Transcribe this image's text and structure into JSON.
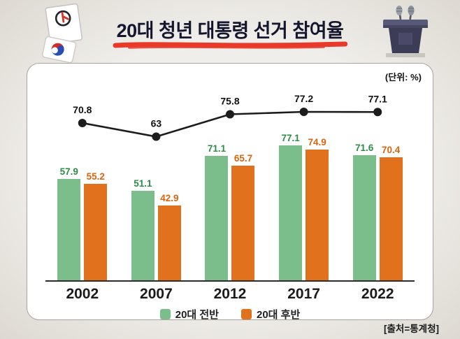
{
  "title": "20대 청년 대통령 선거 참여율",
  "unit_label": "(단위: %)",
  "source": "[출처=통계청]",
  "colors": {
    "accent_red": "#e8392a",
    "green_bar": "#7cbd8c",
    "orange_bar": "#e2711d",
    "line_black": "#1c1c1c"
  },
  "icons": {
    "left": "ballot-box-icon",
    "right": "podium-icon"
  },
  "chart_data": {
    "type": "bar",
    "subtype": "grouped-bars-with-line",
    "categories": [
      "2002",
      "2007",
      "2012",
      "2017",
      "2022"
    ],
    "series": [
      {
        "name": "20대 전반",
        "color": "#7cbd8c",
        "text_color": "#2e8b47",
        "values": [
          57.9,
          51.1,
          71.1,
          77.1,
          71.6
        ]
      },
      {
        "name": "20대 후반",
        "color": "#e2711d",
        "text_color": "#d9650f",
        "values": [
          55.2,
          42.9,
          65.7,
          74.9,
          70.4
        ]
      }
    ],
    "line": {
      "color": "#1c1c1c",
      "values": [
        70.8,
        63,
        75.8,
        77.2,
        77.1
      ]
    },
    "title": "20대 청년 대통령 선거 참여율",
    "xlabel": "",
    "ylabel": "",
    "unit": "%",
    "legend_position": "bottom",
    "grid": false
  }
}
